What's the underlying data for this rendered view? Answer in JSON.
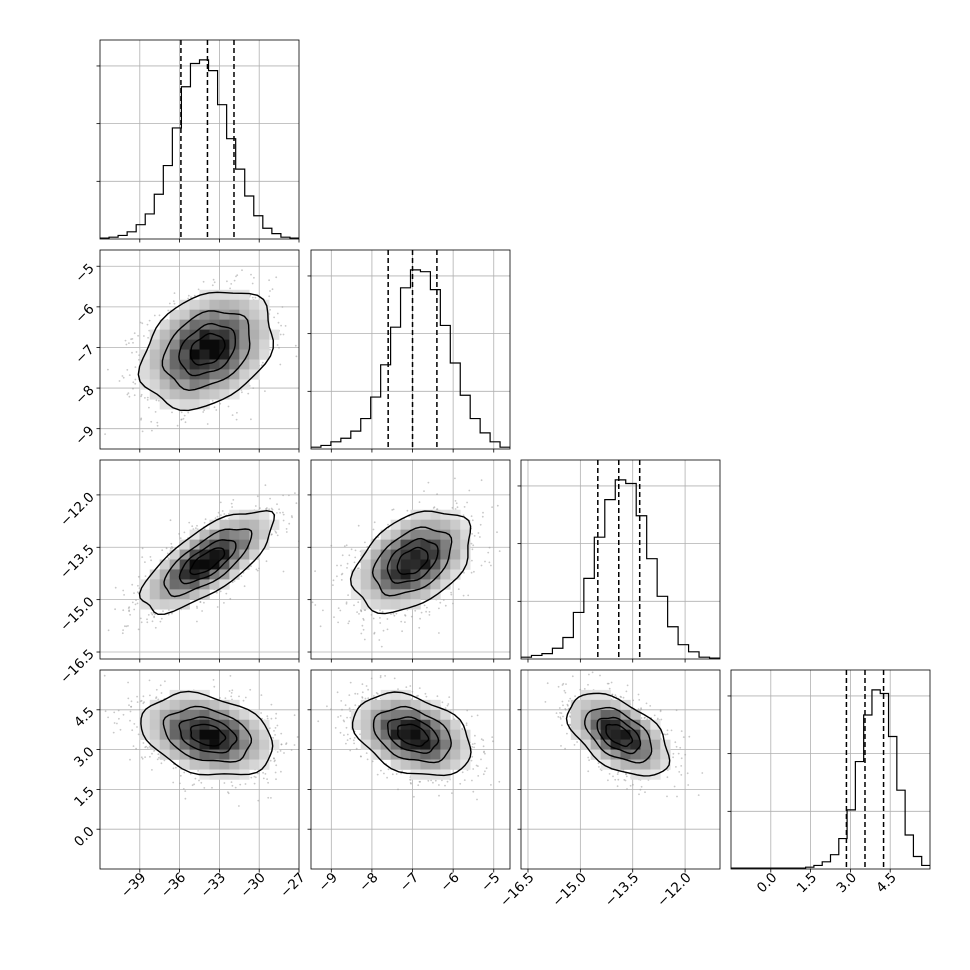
{
  "chart_data": {
    "type": "corner",
    "grid": true,
    "parameters": [
      {
        "range": [
          -42,
          -27
        ],
        "ticks": [
          -39,
          -36,
          -33,
          -30,
          -27
        ],
        "tick_labels": [
          "−39",
          "−36",
          "−33",
          "−30",
          "−27"
        ]
      },
      {
        "range": [
          -9.5,
          -4.6
        ],
        "ticks": [
          -9,
          -8,
          -7,
          -6,
          -5
        ],
        "tick_labels": [
          "−9",
          "−8",
          "−7",
          "−6",
          "−5"
        ]
      },
      {
        "range": [
          -16.7,
          -11.0
        ],
        "ticks": [
          -16.5,
          -15.0,
          -13.5,
          -12.0
        ],
        "tick_labels": [
          "−16.5",
          "−15.0",
          "−13.5",
          "−12.0"
        ]
      },
      {
        "range": [
          -1.5,
          6.0
        ],
        "ticks": [
          0.0,
          1.5,
          3.0,
          4.5
        ],
        "tick_labels": [
          "0.0",
          "1.5",
          "3.0",
          "4.5"
        ]
      }
    ],
    "quantiles": [
      [
        -35.9,
        -33.9,
        -31.9
      ],
      [
        -7.6,
        -7.0,
        -6.4
      ],
      [
        -14.5,
        -13.9,
        -13.3
      ],
      [
        2.85,
        3.55,
        4.25
      ]
    ],
    "histograms": [
      [
        0.005,
        0.01,
        0.02,
        0.04,
        0.08,
        0.14,
        0.25,
        0.41,
        0.62,
        0.85,
        0.98,
        1.0,
        0.94,
        0.75,
        0.56,
        0.39,
        0.24,
        0.13,
        0.06,
        0.03,
        0.01,
        0.005
      ],
      [
        0.01,
        0.02,
        0.04,
        0.06,
        0.1,
        0.17,
        0.29,
        0.47,
        0.68,
        0.9,
        1.0,
        0.99,
        0.89,
        0.69,
        0.48,
        0.3,
        0.17,
        0.09,
        0.04,
        0.01
      ],
      [
        0.01,
        0.02,
        0.03,
        0.06,
        0.12,
        0.26,
        0.45,
        0.68,
        0.89,
        1.0,
        0.98,
        0.8,
        0.56,
        0.35,
        0.18,
        0.08,
        0.04,
        0.01,
        0.005
      ],
      [
        0.005,
        0.005,
        0.005,
        0.005,
        0.005,
        0.005,
        0.005,
        0.005,
        0.005,
        0.01,
        0.02,
        0.04,
        0.08,
        0.17,
        0.33,
        0.6,
        0.86,
        1.0,
        0.98,
        0.74,
        0.44,
        0.19,
        0.07,
        0.02
      ]
    ],
    "pairs": [
      {
        "row": 1,
        "col": 0,
        "mean": [
          -33.9,
          -7.05
        ],
        "sd": [
          2.4,
          0.7
        ],
        "corr": 0.3
      },
      {
        "row": 2,
        "col": 0,
        "mean": [
          -33.9,
          -13.9
        ],
        "sd": [
          2.4,
          0.7
        ],
        "corr": 0.72
      },
      {
        "row": 2,
        "col": 1,
        "mean": [
          -7.0,
          -13.9
        ],
        "sd": [
          0.7,
          0.7
        ],
        "corr": 0.4
      },
      {
        "row": 3,
        "col": 0,
        "mean": [
          -33.9,
          3.55
        ],
        "sd": [
          2.4,
          0.75
        ],
        "corr": -0.28
      },
      {
        "row": 3,
        "col": 1,
        "mean": [
          -7.0,
          3.55
        ],
        "sd": [
          0.7,
          0.75
        ],
        "corr": -0.33
      },
      {
        "row": 3,
        "col": 2,
        "mean": [
          -13.9,
          3.55
        ],
        "sd": [
          0.7,
          0.75
        ],
        "corr": -0.5
      }
    ],
    "contour_sigma_levels": [
      0.5,
      1.0,
      1.5,
      2.0
    ]
  }
}
